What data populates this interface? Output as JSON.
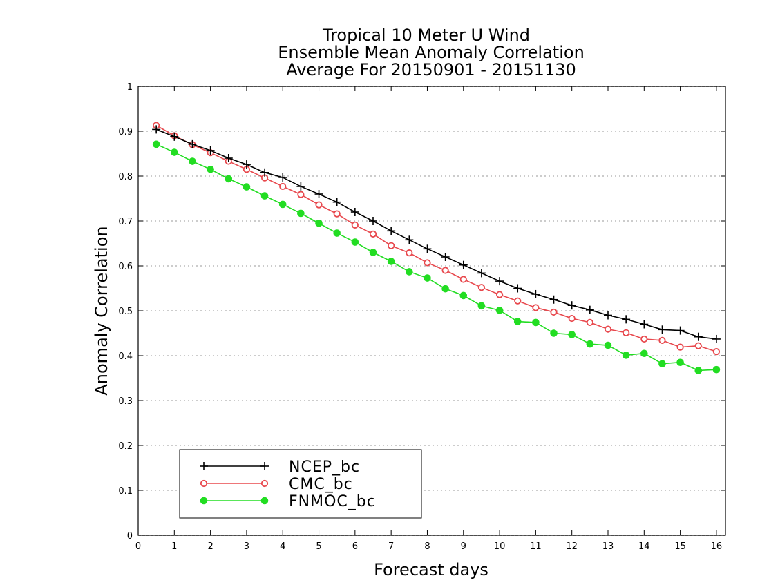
{
  "chart_data": {
    "type": "line",
    "title": [
      "Tropical 10 Meter U Wind",
      "Ensemble Mean Anomaly Correlation",
      "Average For 20150901 - 20151130"
    ],
    "xlabel": "Forecast days",
    "ylabel": "Anomaly Correlation",
    "xlim": [
      0,
      16.25
    ],
    "ylim": [
      0,
      1
    ],
    "xticks": [
      "0",
      "1",
      "2",
      "3",
      "4",
      "5",
      "6",
      "7",
      "8",
      "9",
      "10",
      "11",
      "12",
      "13",
      "14",
      "15",
      "16"
    ],
    "yticks": [
      "0",
      "0.1",
      "0.2",
      "0.3",
      "0.4",
      "0.5",
      "0.6",
      "0.7",
      "0.8",
      "0.9",
      "1"
    ],
    "grid": "horizontal dotted",
    "legend_position": "bottom-left",
    "x": [
      0.5,
      1,
      1.5,
      2,
      2.5,
      3,
      3.5,
      4,
      4.5,
      5,
      5.5,
      6,
      6.5,
      7,
      7.5,
      8,
      8.5,
      9,
      9.5,
      10,
      10.5,
      11,
      11.5,
      12,
      12.5,
      13,
      13.5,
      14,
      14.5,
      15,
      15.5,
      16
    ],
    "series": [
      {
        "name": "NCEP_bc",
        "color": "#000000",
        "marker": "plus",
        "values": [
          0.904,
          0.888,
          0.871,
          0.857,
          0.84,
          0.826,
          0.808,
          0.797,
          0.777,
          0.76,
          0.742,
          0.72,
          0.7,
          0.678,
          0.658,
          0.638,
          0.62,
          0.602,
          0.584,
          0.566,
          0.55,
          0.537,
          0.525,
          0.512,
          0.502,
          0.49,
          0.481,
          0.47,
          0.458,
          0.456,
          0.442,
          0.437
        ]
      },
      {
        "name": "CMC_bc",
        "color": "#e8484d",
        "marker": "open-circle",
        "values": [
          0.913,
          0.89,
          0.87,
          0.852,
          0.833,
          0.815,
          0.796,
          0.777,
          0.759,
          0.736,
          0.716,
          0.691,
          0.671,
          0.645,
          0.629,
          0.607,
          0.59,
          0.57,
          0.552,
          0.536,
          0.522,
          0.507,
          0.497,
          0.483,
          0.474,
          0.459,
          0.451,
          0.437,
          0.434,
          0.419,
          0.422,
          0.409
        ]
      },
      {
        "name": "FNMOC_bc",
        "color": "#22dd22",
        "marker": "filled-circle",
        "values": [
          0.871,
          0.853,
          0.833,
          0.815,
          0.794,
          0.776,
          0.756,
          0.737,
          0.717,
          0.695,
          0.673,
          0.653,
          0.63,
          0.61,
          0.587,
          0.573,
          0.549,
          0.534,
          0.511,
          0.501,
          0.476,
          0.474,
          0.45,
          0.447,
          0.426,
          0.423,
          0.401,
          0.405,
          0.382,
          0.385,
          0.367,
          0.369
        ]
      }
    ]
  }
}
